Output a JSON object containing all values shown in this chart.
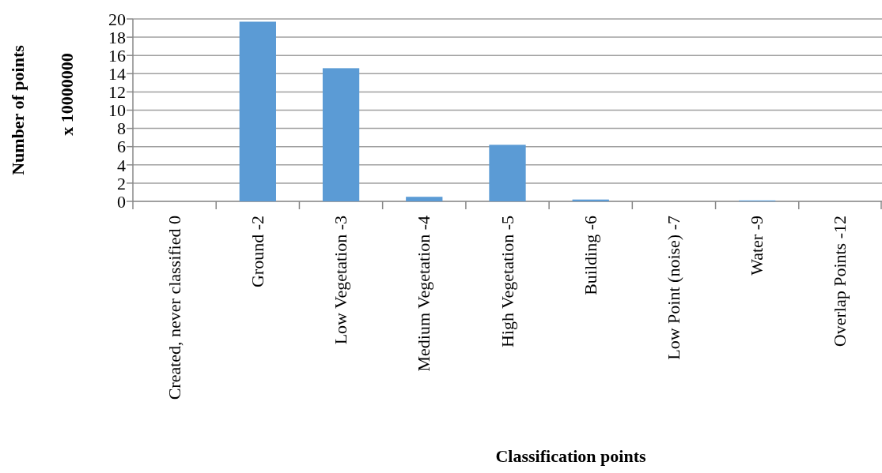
{
  "chart_data": {
    "type": "bar",
    "xlabel": "Classification points",
    "ylabel": "Number of points",
    "annotations": [
      "x 10000000"
    ],
    "categories": [
      "Created, never classified 0",
      "Ground -2",
      "Low Vegetation -3",
      "Medium Vegetation -4",
      "High Vegetation -5",
      "Building -6",
      "Low Point (noise) -7",
      "Water -9",
      "Overlap Points -12"
    ],
    "values": [
      0,
      19.7,
      14.6,
      0.5,
      6.2,
      0.2,
      0,
      0.1,
      0
    ],
    "color": "#5b9bd5",
    "ylim": [
      0,
      20
    ],
    "yticks": [
      0,
      2,
      4,
      6,
      8,
      10,
      12,
      14,
      16,
      18,
      20
    ],
    "grid": "y"
  }
}
